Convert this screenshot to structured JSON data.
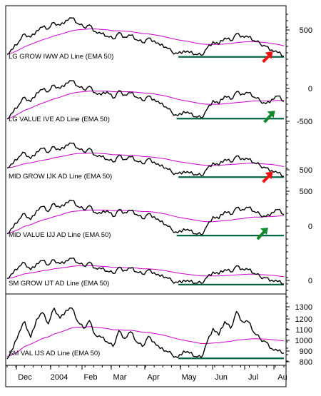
{
  "colors": {
    "price_line": "#000000",
    "ema_line": "#cc00cc",
    "support_line": "#006644",
    "arrow_up": "#11882a",
    "arrow_down": "#ee1111",
    "frame": "#000000",
    "background": "#ffffff"
  },
  "x_axis": {
    "labels": [
      "Dec",
      "2004",
      "Feb",
      "Mar",
      "Apr",
      "May",
      "Jun",
      "Jul",
      "Au"
    ]
  },
  "chart_data": [
    {
      "type": "line",
      "label": "LG GROW IWW AD Line (EMA 50)",
      "y_ticks": [
        "500"
      ],
      "support": {
        "from_month": 4.95,
        "to_month": 8.0
      },
      "arrow": "down",
      "arrow_at_month": 7.6,
      "x_months": [
        0.0,
        0.17,
        0.34,
        0.51,
        0.68,
        0.85,
        1.02,
        1.19,
        1.36,
        1.53,
        1.7,
        1.87,
        2.04,
        2.21,
        2.38,
        2.55,
        2.72,
        2.89,
        3.06,
        3.23,
        3.4,
        3.57,
        3.74,
        3.91,
        4.08,
        4.25,
        4.42,
        4.59,
        4.76,
        4.93,
        5.1,
        5.27,
        5.44,
        5.61,
        5.78,
        5.95,
        6.12,
        6.29,
        6.46,
        6.63,
        6.8,
        6.97,
        7.14,
        7.31,
        7.48,
        7.65,
        7.82,
        8.0
      ],
      "values": [
        10,
        22,
        38,
        55,
        48,
        62,
        70,
        66,
        80,
        74,
        85,
        90,
        78,
        70,
        75,
        60,
        55,
        50,
        44,
        58,
        48,
        52,
        42,
        36,
        46,
        40,
        30,
        26,
        16,
        12,
        18,
        14,
        10,
        8,
        24,
        38,
        32,
        46,
        40,
        56,
        50,
        48,
        40,
        34,
        28,
        20,
        14,
        6
      ],
      "ema": [
        10,
        14,
        20,
        27,
        32,
        37,
        42,
        46,
        51,
        54,
        58,
        62,
        64,
        65,
        66,
        66,
        65,
        64,
        62,
        62,
        61,
        60,
        58,
        56,
        55,
        53,
        51,
        48,
        45,
        42,
        40,
        38,
        35,
        33,
        32,
        32,
        32,
        33,
        34,
        36,
        37,
        38,
        38,
        37,
        36,
        34,
        32,
        29
      ]
    },
    {
      "type": "line",
      "label": "LG VALUE IVE AD Line (EMA 50)",
      "y_ticks": [
        "0",
        "-500"
      ],
      "support": {
        "from_month": 4.9,
        "to_month": 8.0
      },
      "arrow": "up",
      "arrow_at_month": 7.6,
      "x_months": [
        0.0,
        0.17,
        0.34,
        0.51,
        0.68,
        0.85,
        1.02,
        1.19,
        1.36,
        1.53,
        1.7,
        1.87,
        2.04,
        2.21,
        2.38,
        2.55,
        2.72,
        2.89,
        3.06,
        3.23,
        3.4,
        3.57,
        3.74,
        3.91,
        4.08,
        4.25,
        4.42,
        4.59,
        4.76,
        4.93,
        5.1,
        5.27,
        5.44,
        5.61,
        5.78,
        5.95,
        6.12,
        6.29,
        6.46,
        6.63,
        6.8,
        6.97,
        7.14,
        7.31,
        7.48,
        7.65,
        7.82,
        8.0
      ],
      "values": [
        8,
        20,
        34,
        48,
        40,
        56,
        62,
        58,
        70,
        64,
        74,
        78,
        68,
        62,
        68,
        56,
        52,
        58,
        46,
        60,
        52,
        56,
        48,
        42,
        50,
        44,
        36,
        30,
        20,
        14,
        22,
        18,
        12,
        10,
        26,
        42,
        36,
        50,
        44,
        58,
        54,
        56,
        48,
        42,
        36,
        44,
        50,
        40
      ],
      "ema": [
        8,
        12,
        18,
        24,
        28,
        33,
        37,
        41,
        45,
        48,
        52,
        55,
        57,
        58,
        59,
        59,
        59,
        59,
        58,
        58,
        58,
        58,
        57,
        56,
        55,
        54,
        52,
        50,
        47,
        44,
        42,
        40,
        38,
        36,
        35,
        35,
        35,
        36,
        37,
        38,
        39,
        40,
        41,
        41,
        41,
        41,
        42,
        42
      ]
    },
    {
      "type": "line",
      "label": "MID GROW IJK AD Line (EMA 50)",
      "y_ticks": [
        "500"
      ],
      "support": {
        "from_month": 4.95,
        "to_month": 8.0
      },
      "arrow": "down",
      "arrow_at_month": 7.6,
      "x_months": [
        0.0,
        0.17,
        0.34,
        0.51,
        0.68,
        0.85,
        1.02,
        1.19,
        1.36,
        1.53,
        1.7,
        1.87,
        2.04,
        2.21,
        2.38,
        2.55,
        2.72,
        2.89,
        3.06,
        3.23,
        3.4,
        3.57,
        3.74,
        3.91,
        4.08,
        4.25,
        4.42,
        4.59,
        4.76,
        4.93,
        5.1,
        5.27,
        5.44,
        5.61,
        5.78,
        5.95,
        6.12,
        6.29,
        6.46,
        6.63,
        6.8,
        6.97,
        7.14,
        7.31,
        7.48,
        7.65,
        7.82,
        8.0
      ],
      "values": [
        24,
        34,
        50,
        60,
        46,
        62,
        70,
        60,
        74,
        66,
        78,
        82,
        70,
        62,
        70,
        54,
        50,
        44,
        38,
        54,
        44,
        50,
        40,
        34,
        46,
        38,
        28,
        24,
        14,
        10,
        16,
        12,
        8,
        6,
        22,
        36,
        30,
        44,
        38,
        52,
        46,
        44,
        36,
        30,
        24,
        18,
        12,
        4
      ],
      "ema": [
        24,
        26,
        30,
        34,
        36,
        39,
        42,
        44,
        48,
        50,
        53,
        56,
        58,
        58,
        59,
        59,
        58,
        57,
        55,
        55,
        54,
        54,
        53,
        51,
        50,
        49,
        47,
        45,
        42,
        39,
        37,
        35,
        33,
        31,
        30,
        30,
        30,
        31,
        32,
        33,
        34,
        35,
        35,
        34,
        33,
        32,
        30,
        27
      ]
    },
    {
      "type": "line",
      "label": "MID VALUE IJJ AD Line (EMA 50)",
      "y_ticks": [
        "500",
        "0"
      ],
      "support": {
        "from_month": 4.9,
        "to_month": 8.0
      },
      "arrow": "up",
      "arrow_at_month": 7.4,
      "x_months": [
        0.0,
        0.17,
        0.34,
        0.51,
        0.68,
        0.85,
        1.02,
        1.19,
        1.36,
        1.53,
        1.7,
        1.87,
        2.04,
        2.21,
        2.38,
        2.55,
        2.72,
        2.89,
        3.06,
        3.23,
        3.4,
        3.57,
        3.74,
        3.91,
        4.08,
        4.25,
        4.42,
        4.59,
        4.76,
        4.93,
        5.1,
        5.27,
        5.44,
        5.61,
        5.78,
        5.95,
        6.12,
        6.29,
        6.46,
        6.63,
        6.8,
        6.97,
        7.14,
        7.31,
        7.48,
        7.65,
        7.82,
        8.0
      ],
      "values": [
        10,
        22,
        38,
        50,
        38,
        56,
        64,
        54,
        70,
        62,
        72,
        76,
        64,
        58,
        66,
        52,
        50,
        56,
        44,
        58,
        52,
        56,
        48,
        40,
        50,
        44,
        34,
        28,
        18,
        12,
        20,
        16,
        10,
        8,
        26,
        44,
        40,
        54,
        48,
        62,
        58,
        62,
        54,
        48,
        44,
        52,
        58,
        48
      ],
      "ema": [
        10,
        14,
        19,
        25,
        28,
        33,
        37,
        40,
        44,
        47,
        51,
        54,
        55,
        56,
        57,
        57,
        57,
        57,
        56,
        56,
        56,
        56,
        55,
        54,
        54,
        53,
        51,
        49,
        46,
        43,
        41,
        39,
        37,
        35,
        34,
        34,
        35,
        36,
        37,
        39,
        40,
        42,
        43,
        43,
        44,
        44,
        45,
        46
      ]
    },
    {
      "type": "line",
      "label": "SM GROW IJT AD Line (EMA 50)",
      "y_ticks": [
        "0"
      ],
      "support": {
        "from_month": 4.95,
        "to_month": 8.0
      },
      "arrow": null,
      "x_months": [
        0.0,
        0.17,
        0.34,
        0.51,
        0.68,
        0.85,
        1.02,
        1.19,
        1.36,
        1.53,
        1.7,
        1.87,
        2.04,
        2.21,
        2.38,
        2.55,
        2.72,
        2.89,
        3.06,
        3.23,
        3.4,
        3.57,
        3.74,
        3.91,
        4.08,
        4.25,
        4.42,
        4.59,
        4.76,
        4.93,
        5.1,
        5.27,
        5.44,
        5.61,
        5.78,
        5.95,
        6.12,
        6.29,
        6.46,
        6.63,
        6.8,
        6.97,
        7.14,
        7.31,
        7.48,
        7.65,
        7.82,
        8.0
      ],
      "values": [
        16,
        30,
        48,
        58,
        40,
        56,
        64,
        52,
        66,
        56,
        64,
        70,
        58,
        50,
        60,
        44,
        42,
        36,
        30,
        46,
        38,
        44,
        34,
        28,
        40,
        32,
        22,
        20,
        10,
        6,
        12,
        8,
        4,
        4,
        20,
        34,
        28,
        40,
        34,
        50,
        42,
        40,
        30,
        22,
        18,
        12,
        8,
        2
      ],
      "ema": [
        16,
        19,
        24,
        29,
        31,
        34,
        37,
        39,
        42,
        44,
        46,
        49,
        50,
        50,
        51,
        50,
        49,
        48,
        46,
        46,
        45,
        45,
        44,
        42,
        42,
        41,
        39,
        37,
        34,
        31,
        29,
        27,
        25,
        23,
        23,
        23,
        23,
        24,
        25,
        26,
        27,
        28,
        28,
        27,
        26,
        25,
        23,
        21
      ]
    },
    {
      "type": "line",
      "label": "SM VAL IJS AD Line (EMA 50)",
      "y_ticks": [
        "1300",
        "1200",
        "1100",
        "1000",
        "900",
        "800"
      ],
      "ylim": [
        790,
        1360
      ],
      "support": {
        "from_month": 4.95,
        "to_month": 8.0
      },
      "arrow": null,
      "x_months": [
        0.0,
        0.17,
        0.34,
        0.51,
        0.68,
        0.85,
        1.02,
        1.19,
        1.36,
        1.53,
        1.7,
        1.87,
        2.04,
        2.21,
        2.38,
        2.55,
        2.72,
        2.89,
        3.06,
        3.23,
        3.4,
        3.57,
        3.74,
        3.91,
        4.08,
        4.25,
        4.42,
        4.59,
        4.76,
        4.93,
        5.1,
        5.27,
        5.44,
        5.61,
        5.78,
        5.95,
        6.12,
        6.29,
        6.46,
        6.63,
        6.8,
        6.97,
        7.14,
        7.31,
        7.48,
        7.65,
        7.82,
        8.0
      ],
      "values": [
        810,
        900,
        1040,
        1140,
        1000,
        1160,
        1220,
        1120,
        1260,
        1170,
        1240,
        1260,
        1140,
        1080,
        1150,
        1020,
        1000,
        960,
        920,
        1060,
        990,
        1050,
        960,
        920,
        1010,
        960,
        900,
        880,
        850,
        820,
        880,
        860,
        830,
        820,
        960,
        1080,
        1020,
        1140,
        1080,
        1230,
        1140,
        1140,
        1040,
        990,
        960,
        900,
        880,
        860
      ],
      "ema": [
        830,
        850,
        880,
        920,
        940,
        965,
        990,
        1005,
        1030,
        1045,
        1065,
        1085,
        1090,
        1090,
        1095,
        1090,
        1085,
        1078,
        1068,
        1068,
        1063,
        1063,
        1056,
        1046,
        1043,
        1036,
        1026,
        1015,
        1000,
        985,
        975,
        965,
        955,
        945,
        945,
        950,
        952,
        960,
        965,
        975,
        980,
        985,
        988,
        987,
        985,
        980,
        975,
        968
      ]
    }
  ]
}
